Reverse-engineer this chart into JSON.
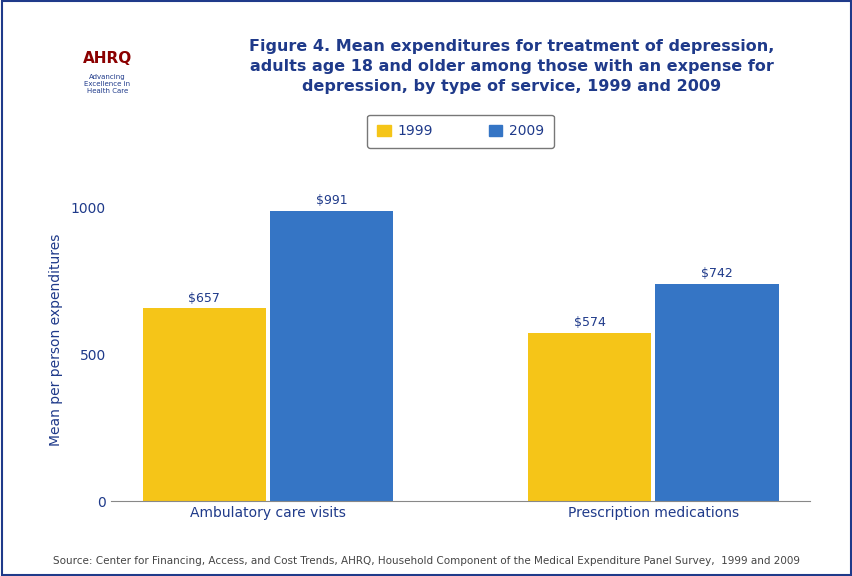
{
  "title_line1": "Figure 4. Mean expenditures for treatment of depression,",
  "title_line2": "adults age 18 and older among those with an expense for",
  "title_line3": "depression, by type of service, 1999 and 2009",
  "title_color": "#1F3A8A",
  "categories": [
    "Ambulatory care visits",
    "Prescription medications"
  ],
  "values_1999": [
    657,
    574
  ],
  "values_2009": [
    991,
    742
  ],
  "labels_1999": [
    "$657",
    "$574"
  ],
  "labels_2009": [
    "$991",
    "$742"
  ],
  "color_1999": "#F5C518",
  "color_2009": "#3575C5",
  "ylabel": "Mean per person expenditures",
  "ylim": [
    0,
    1100
  ],
  "yticks": [
    0,
    500,
    1000
  ],
  "legend_labels": [
    "1999",
    "2009"
  ],
  "bar_width": 0.32,
  "bar_gap": 0.01,
  "source_text": "Source: Center for Financing, Access, and Cost Trends, AHRQ, Household Component of the Medical Expenditure Panel Survey,  1999 and 2009",
  "background_color": "#FFFFFF",
  "header_border_color": "#1F3A8A",
  "axis_label_color": "#1F3A8A",
  "tick_label_color": "#1F3A8A",
  "category_label_color": "#1F3A8A",
  "value_label_color": "#1F3A8A",
  "source_color": "#444444",
  "outer_border_color": "#1F3A8A"
}
